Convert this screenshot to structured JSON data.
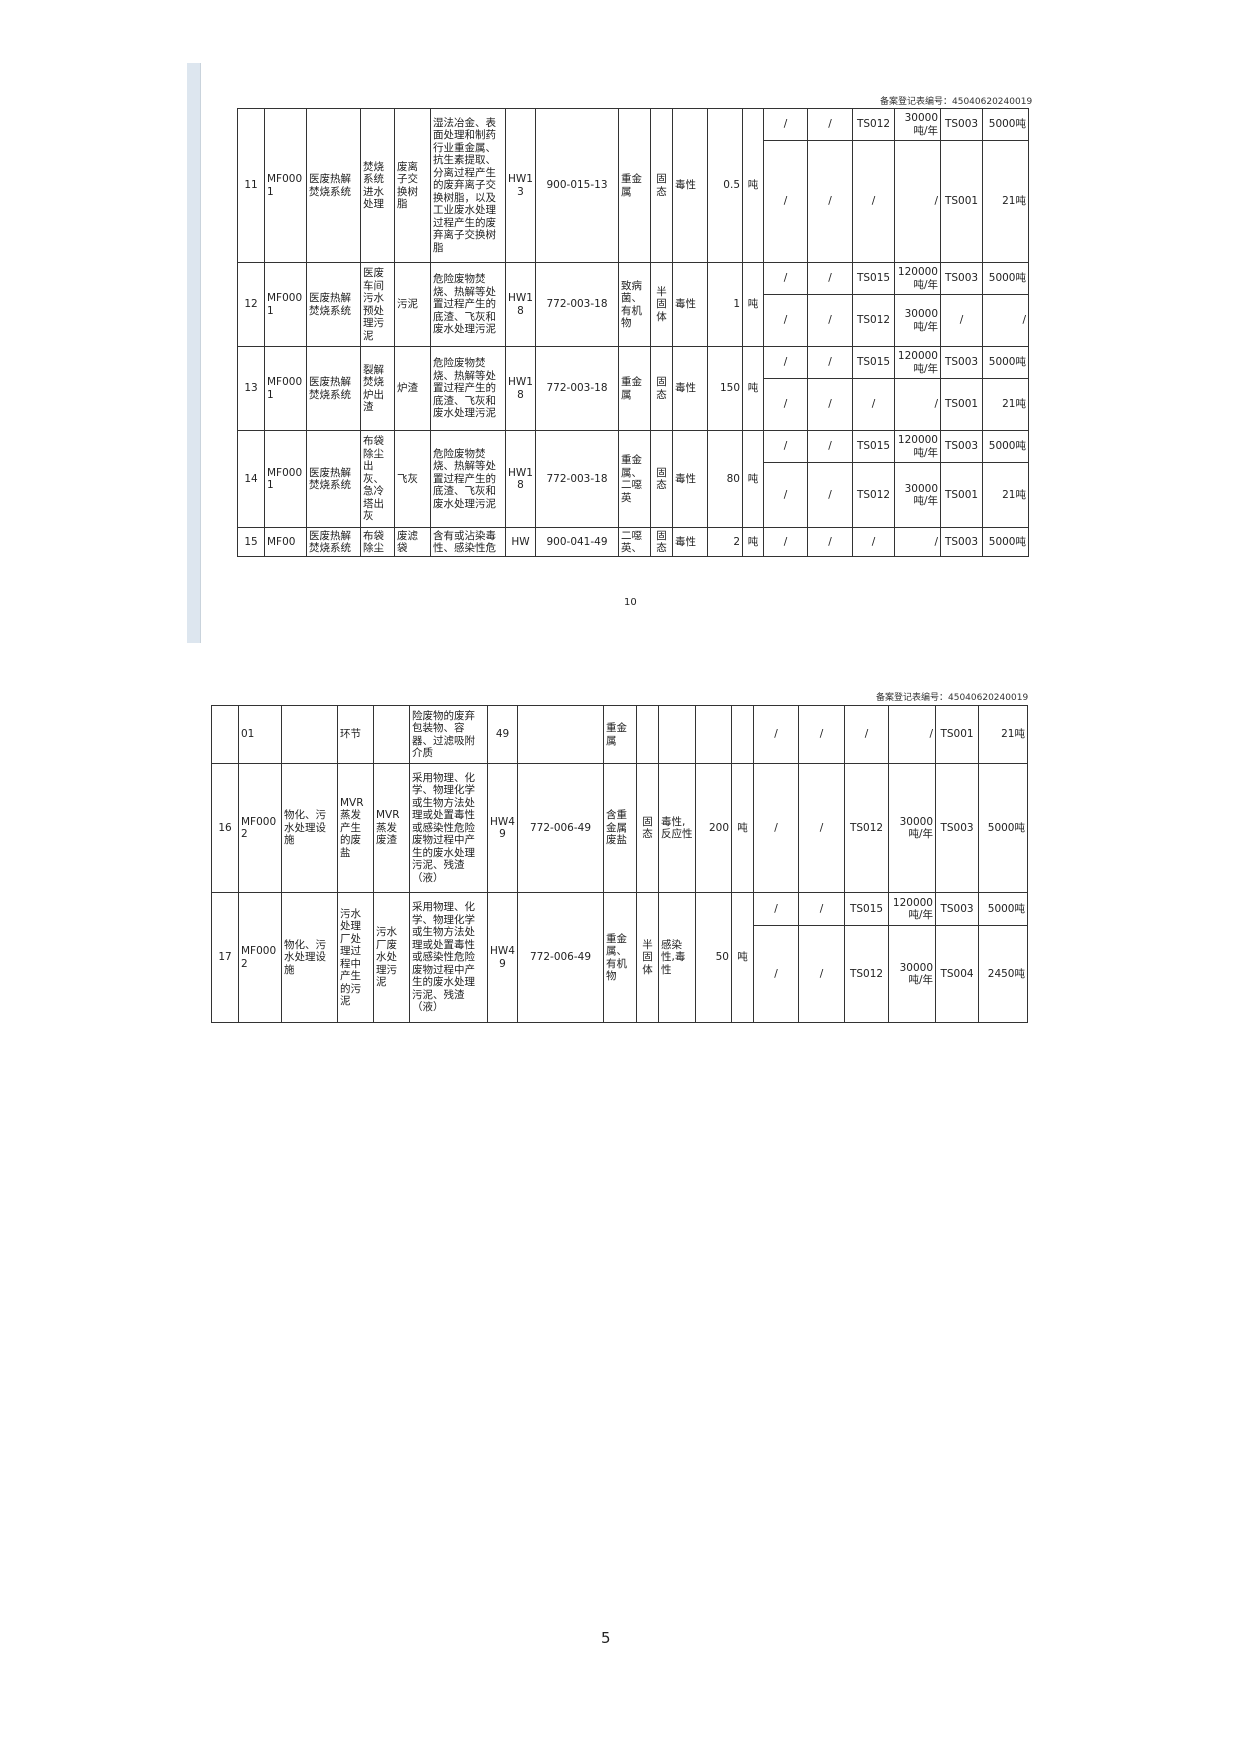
{
  "page_top": {
    "registration_no": "备案登记表编号：45040620240019",
    "page_number": "10",
    "records": [
      {
        "no": "11",
        "code": "MF0001",
        "facility": "医废热解焚烧系统",
        "process": "焚烧系统进水处理",
        "name": "废离子交换树脂",
        "description": "湿法冶金、表面处理和制药行业重金属、抗生素提取、分离过程产生的废弃离子交换树脂，以及工业废水处理过程产生的废弃离子交换树脂",
        "category": "HW13",
        "waste_code": "900-015-13",
        "hazard_component": "重金属",
        "form": "固态",
        "hazard_property": "毒性",
        "amount": "0.5",
        "unit": "吨",
        "destinations": [
          [
            "/",
            "/",
            "TS012",
            "30000吨/年",
            "TS003",
            "5000吨"
          ],
          [
            "/",
            "/",
            "/",
            "/",
            "TS001",
            "21吨"
          ]
        ]
      },
      {
        "no": "12",
        "code": "MF0001",
        "facility": "医废热解焚烧系统",
        "process": "医废车间污水预处理污泥",
        "name": "污泥",
        "description": "危险废物焚烧、热解等处置过程产生的底渣、飞灰和废水处理污泥",
        "category": "HW18",
        "waste_code": "772-003-18",
        "hazard_component": "致病菌、有机物",
        "form": "半固体",
        "hazard_property": "毒性",
        "amount": "1",
        "unit": "吨",
        "destinations": [
          [
            "/",
            "/",
            "TS015",
            "120000吨/年",
            "TS003",
            "5000吨"
          ],
          [
            "/",
            "/",
            "TS012",
            "30000吨/年",
            "/",
            "/"
          ]
        ]
      },
      {
        "no": "13",
        "code": "MF0001",
        "facility": "医废热解焚烧系统",
        "process": "裂解焚烧炉出渣",
        "name": "炉渣",
        "description": "危险废物焚烧、热解等处置过程产生的底渣、飞灰和废水处理污泥",
        "category": "HW18",
        "waste_code": "772-003-18",
        "hazard_component": "重金属",
        "form": "固态",
        "hazard_property": "毒性",
        "amount": "150",
        "unit": "吨",
        "destinations": [
          [
            "/",
            "/",
            "TS015",
            "120000吨/年",
            "TS003",
            "5000吨"
          ],
          [
            "/",
            "/",
            "/",
            "/",
            "TS001",
            "21吨"
          ]
        ]
      },
      {
        "no": "14",
        "code": "MF0001",
        "facility": "医废热解焚烧系统",
        "process": "布袋除尘出灰、急冷塔出灰",
        "name": "飞灰",
        "description": "危险废物焚烧、热解等处置过程产生的底渣、飞灰和废水处理污泥",
        "category": "HW18",
        "waste_code": "772-003-18",
        "hazard_component": "重金属、二噁英",
        "form": "固态",
        "hazard_property": "毒性",
        "amount": "80",
        "unit": "吨",
        "destinations": [
          [
            "/",
            "/",
            "TS015",
            "120000吨/年",
            "TS003",
            "5000吨"
          ],
          [
            "/",
            "/",
            "TS012",
            "30000吨/年",
            "TS001",
            "21吨"
          ]
        ]
      },
      {
        "no": "15",
        "code": "MF00",
        "facility": "医废热解焚烧系统",
        "process": "布袋除尘",
        "name": "废滤袋",
        "description": "含有或沾染毒性、感染性危",
        "category": "HW",
        "waste_code": "900-041-49",
        "hazard_component": "二噁英、",
        "form": "固态",
        "hazard_property": "毒性",
        "amount": "2",
        "unit": "吨",
        "destinations": [
          [
            "/",
            "/",
            "/",
            "/",
            "TS003",
            "5000吨"
          ]
        ]
      }
    ]
  },
  "page_bottom": {
    "registration_no": "备案登记表编号：45040620240019",
    "page_number": "5",
    "records": [
      {
        "no": "",
        "code": "01",
        "facility": "",
        "process": "环节",
        "name": "",
        "description": "险废物的废弃包装物、容器、过滤吸附介质",
        "category": "49",
        "waste_code": "",
        "hazard_component": "重金属",
        "form": "",
        "hazard_property": "",
        "amount": "",
        "unit": "",
        "destinations": [
          [
            "/",
            "/",
            "/",
            "/",
            "TS001",
            "21吨"
          ]
        ]
      },
      {
        "no": "16",
        "code": "MF0002",
        "facility": "物化、污水处理设施",
        "process": "MVR蒸发产生的废盐",
        "name": "MVR蒸发废渣",
        "description": "采用物理、化学、物理化学或生物方法处理或处置毒性或感染性危险废物过程中产生的废水处理污泥、残渣（液）",
        "category": "HW49",
        "waste_code": "772-006-49",
        "hazard_component": "含重金属废盐",
        "form": "固态",
        "hazard_property": "毒性,反应性",
        "amount": "200",
        "unit": "吨",
        "destinations": [
          [
            "/",
            "/",
            "TS012",
            "30000吨/年",
            "TS003",
            "5000吨"
          ]
        ]
      },
      {
        "no": "17",
        "code": "MF0002",
        "facility": "物化、污水处理设施",
        "process": "污水处理厂处理过程中产生的污泥",
        "name": "污水厂废水处理污泥",
        "description": "采用物理、化学、物理化学或生物方法处理或处置毒性或感染性危险废物过程中产生的废水处理污泥、残渣（液）",
        "category": "HW49",
        "waste_code": "772-006-49",
        "hazard_component": "重金属、有机物",
        "form": "半固体",
        "hazard_property": "感染性,毒性",
        "amount": "50",
        "unit": "吨",
        "destinations": [
          [
            "/",
            "/",
            "TS015",
            "120000吨/年",
            "TS003",
            "5000吨"
          ],
          [
            "/",
            "/",
            "TS012",
            "30000吨/年",
            "TS004",
            "2450吨"
          ]
        ]
      }
    ]
  }
}
